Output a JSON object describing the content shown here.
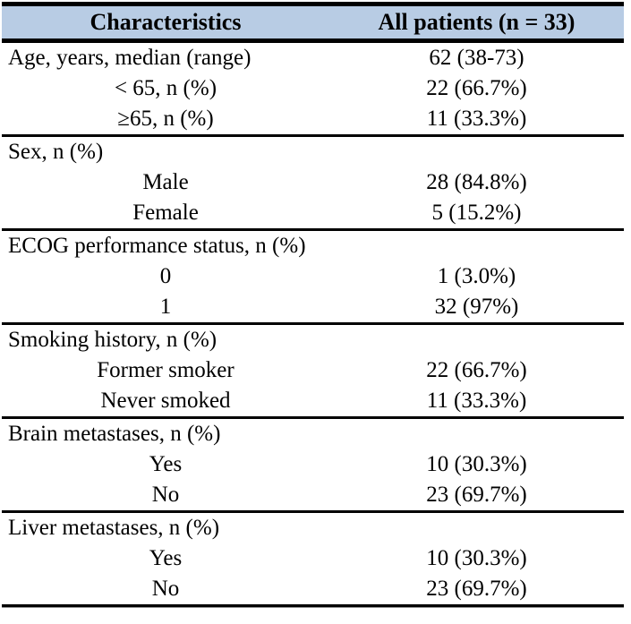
{
  "table": {
    "header_bg": "#b8cce4",
    "rule_color": "#000000",
    "columns": [
      "Characteristics",
      "All patients (n = 33)"
    ],
    "sections": [
      {
        "rows": [
          {
            "label": "Age, years, median (range)",
            "value": "62 (38-73)"
          },
          {
            "label": "< 65, n (%)",
            "value": "22 (66.7%)"
          },
          {
            "label": "≥65, n (%)",
            "value": "11 (33.3%)"
          }
        ]
      },
      {
        "rows": [
          {
            "label": "Sex, n (%)",
            "value": ""
          },
          {
            "label": "Male",
            "value": "28 (84.8%)"
          },
          {
            "label": "Female",
            "value": "5 (15.2%)"
          }
        ]
      },
      {
        "rows": [
          {
            "label": "ECOG performance status, n (%)",
            "value": ""
          },
          {
            "label": "0",
            "value": "1 (3.0%)"
          },
          {
            "label": "1",
            "value": "32 (97%)"
          }
        ]
      },
      {
        "rows": [
          {
            "label": "Smoking history, n (%)",
            "value": ""
          },
          {
            "label": "Former smoker",
            "value": "22 (66.7%)"
          },
          {
            "label": "Never smoked",
            "value": "11 (33.3%)"
          }
        ]
      },
      {
        "rows": [
          {
            "label": "Brain metastases, n (%)",
            "value": ""
          },
          {
            "label": "Yes",
            "value": "10 (30.3%)"
          },
          {
            "label": "No",
            "value": "23 (69.7%)"
          }
        ]
      },
      {
        "rows": [
          {
            "label": "Liver metastases, n (%)",
            "value": ""
          },
          {
            "label": "Yes",
            "value": "10 (30.3%)"
          },
          {
            "label": "No",
            "value": "23 (69.7%)"
          }
        ]
      }
    ]
  }
}
